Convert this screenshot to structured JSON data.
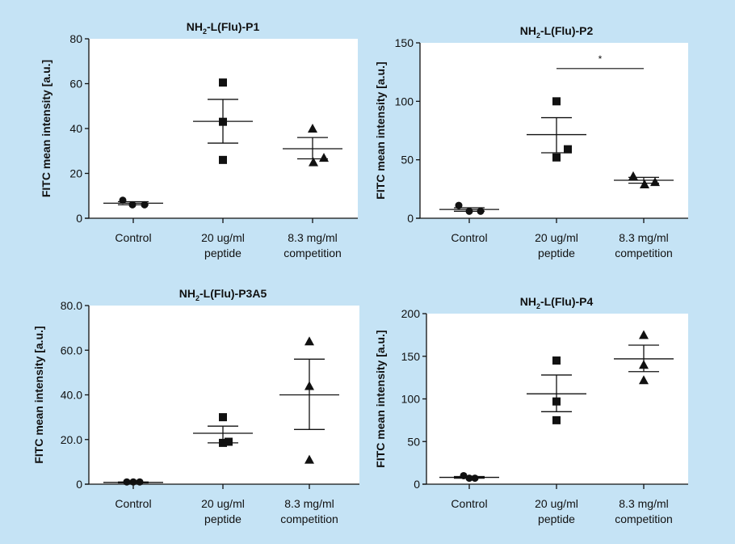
{
  "chart_data": [
    {
      "type": "scatter",
      "title": "NH2-L(Flu)-P1",
      "title_parts": [
        "NH",
        "2",
        "-L(Flu)-P1"
      ],
      "ylabel": "FITC mean intensity [a.u.]",
      "xlabel": "",
      "ylim": [
        0,
        80
      ],
      "yticks": [
        0,
        20,
        40,
        60,
        80
      ],
      "ytick_labels": [
        "0",
        "20",
        "40",
        "60",
        "80"
      ],
      "categories": [
        [
          "Control"
        ],
        [
          "20 ug/ml",
          "peptide"
        ],
        [
          "8.3 mg/ml",
          "competition"
        ]
      ],
      "markers": [
        "circle",
        "square",
        "triangle"
      ],
      "groups": [
        {
          "values": [
            8,
            6,
            6
          ],
          "mean": 6.7,
          "err": [
            6.0,
            7.4
          ]
        },
        {
          "values": [
            60.5,
            43,
            26
          ],
          "mean": 43.2,
          "err": [
            33.5,
            53
          ]
        },
        {
          "values": [
            40,
            25,
            27
          ],
          "mean": 31,
          "err": [
            26.5,
            36
          ]
        }
      ],
      "significance": []
    },
    {
      "type": "scatter",
      "title": "NH2-L(Flu)-P2",
      "title_parts": [
        "NH",
        "2",
        "-L(Flu)-P2"
      ],
      "ylabel": "FITC mean intensity [a.u.]",
      "xlabel": "",
      "ylim": [
        0,
        150
      ],
      "yticks": [
        0,
        50,
        100,
        150
      ],
      "ytick_labels": [
        "0",
        "50",
        "100",
        "150"
      ],
      "categories": [
        [
          "Control"
        ],
        [
          "20 ug/ml",
          "peptide"
        ],
        [
          "8.3 mg/ml",
          "competition"
        ]
      ],
      "markers": [
        "circle",
        "square",
        "triangle"
      ],
      "groups": [
        {
          "values": [
            11,
            6,
            6
          ],
          "mean": 7.5,
          "err": [
            6,
            9
          ]
        },
        {
          "values": [
            100,
            52,
            59
          ],
          "mean": 71.5,
          "err": [
            56,
            86
          ]
        },
        {
          "values": [
            36,
            29,
            31
          ],
          "mean": 32.5,
          "err": [
            30,
            35
          ]
        }
      ],
      "significance": [
        {
          "from": 1,
          "to": 2,
          "y": 128,
          "label": "*"
        }
      ]
    },
    {
      "type": "scatter",
      "title": "NH2-L(Flu)-P3A5",
      "title_parts": [
        "NH",
        "2",
        "-L(Flu)-P3A5"
      ],
      "ylabel": "FITC mean intensity [a.u.]",
      "xlabel": "",
      "ylim": [
        0,
        80
      ],
      "yticks": [
        0,
        20,
        40,
        60,
        80
      ],
      "ytick_labels": [
        "0",
        "20.0",
        "40.0",
        "60.0",
        "80.0"
      ],
      "categories": [
        [
          "Control"
        ],
        [
          "20 ug/ml",
          "peptide"
        ],
        [
          "8.3 mg/ml",
          "competition"
        ]
      ],
      "markers": [
        "circle",
        "square",
        "triangle"
      ],
      "groups": [
        {
          "values": [
            1,
            1,
            1
          ],
          "mean": 0.8,
          "err": [
            0.6,
            1.0
          ]
        },
        {
          "values": [
            30,
            18.5,
            19
          ],
          "mean": 22.8,
          "err": [
            18.5,
            26
          ]
        },
        {
          "values": [
            64,
            44,
            11
          ],
          "mean": 40,
          "err": [
            24.5,
            56
          ]
        }
      ],
      "significance": []
    },
    {
      "type": "scatter",
      "title": "NH2-L(Flu)-P4",
      "title_parts": [
        "NH",
        "2",
        "-L(Flu)-P4"
      ],
      "ylabel": "FITC mean intensity [a.u.]",
      "xlabel": "",
      "ylim": [
        0,
        200
      ],
      "yticks": [
        0,
        50,
        100,
        150,
        200
      ],
      "ytick_labels": [
        "0",
        "50",
        "100",
        "150",
        "200"
      ],
      "categories": [
        [
          "Control"
        ],
        [
          "20 ug/ml",
          "peptide"
        ],
        [
          "8.3 mg/ml",
          "competition"
        ]
      ],
      "markers": [
        "circle",
        "square",
        "triangle"
      ],
      "groups": [
        {
          "values": [
            10,
            7,
            7
          ],
          "mean": 8,
          "err": [
            7,
            9
          ]
        },
        {
          "values": [
            145,
            97,
            75
          ],
          "mean": 106,
          "err": [
            85,
            128
          ]
        },
        {
          "values": [
            175,
            140,
            122
          ],
          "mean": 147,
          "err": [
            132,
            163
          ]
        }
      ],
      "significance": []
    }
  ],
  "colors": {
    "background": "#c5e3f5",
    "plot": "#ffffff",
    "ink": "#111111"
  }
}
